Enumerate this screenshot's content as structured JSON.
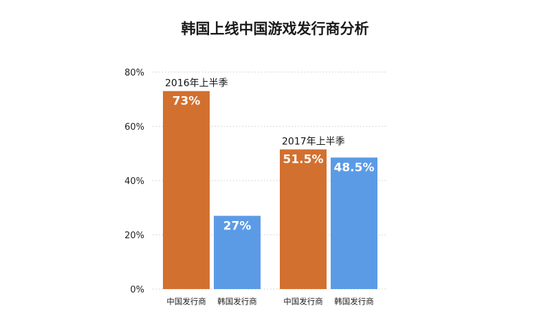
{
  "chart_data": {
    "type": "bar",
    "title": "韩国上线中国游戏发行商分析",
    "ylim": [
      0,
      80
    ],
    "yticks": [
      "0%",
      "20%",
      "40%",
      "60%",
      "80%"
    ],
    "grid": true,
    "legend": "none",
    "groups": [
      {
        "label": "2016年上半季",
        "bars": [
          {
            "category": "中国发行商",
            "value": 73,
            "value_label": "73%",
            "color": "#D2702F"
          },
          {
            "category": "韩国发行商",
            "value": 27,
            "value_label": "27%",
            "color": "#5B9BE6"
          }
        ]
      },
      {
        "label": "2017年上半季",
        "bars": [
          {
            "category": "中国发行商",
            "value": 51.5,
            "value_label": "51.5%",
            "color": "#D2702F"
          },
          {
            "category": "韩国发行商",
            "value": 48.5,
            "value_label": "48.5%",
            "color": "#5B9BE6"
          }
        ]
      }
    ]
  }
}
